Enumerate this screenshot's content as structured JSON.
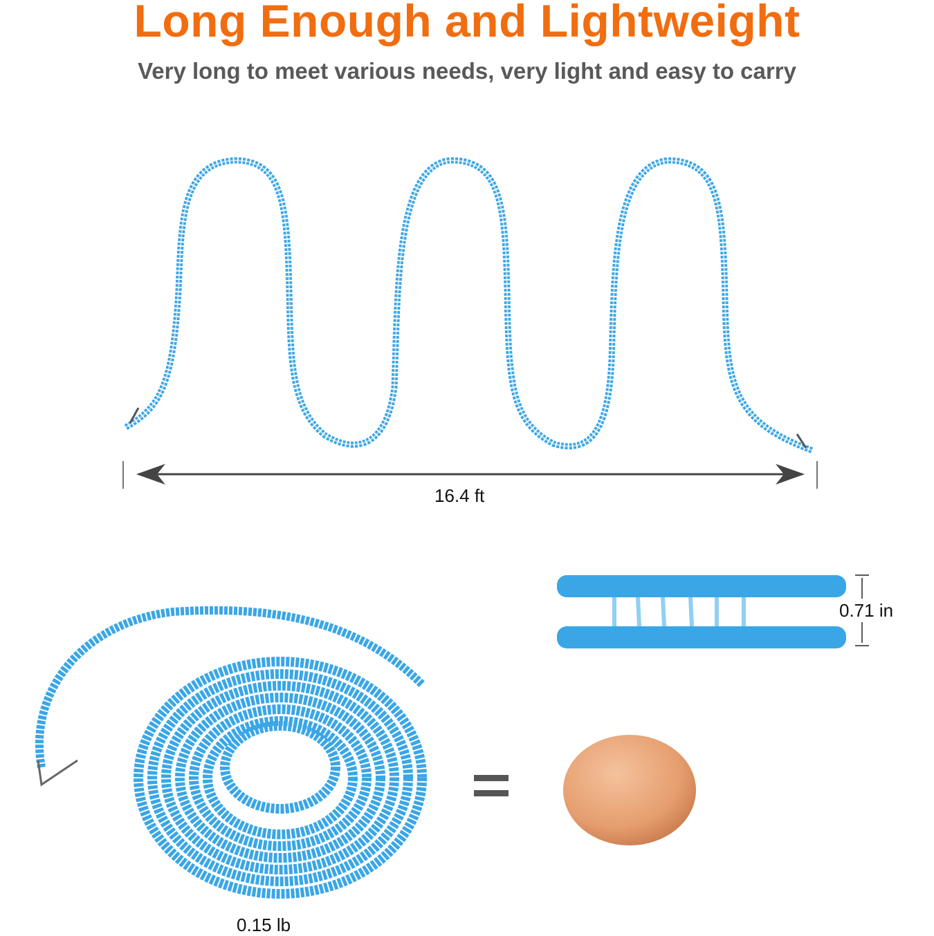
{
  "header": {
    "title": "Long Enough and Lightweight",
    "subtitle": "Very long to meet various needs, very light and easy to carry"
  },
  "measurements": {
    "length": "16.4 ft",
    "width": "0.71 in",
    "weight": "0.15 lb"
  },
  "colors": {
    "title": "#f26d0f",
    "subtitle": "#595959",
    "rope": "#3aa6e6",
    "egg": "#e9a277"
  }
}
